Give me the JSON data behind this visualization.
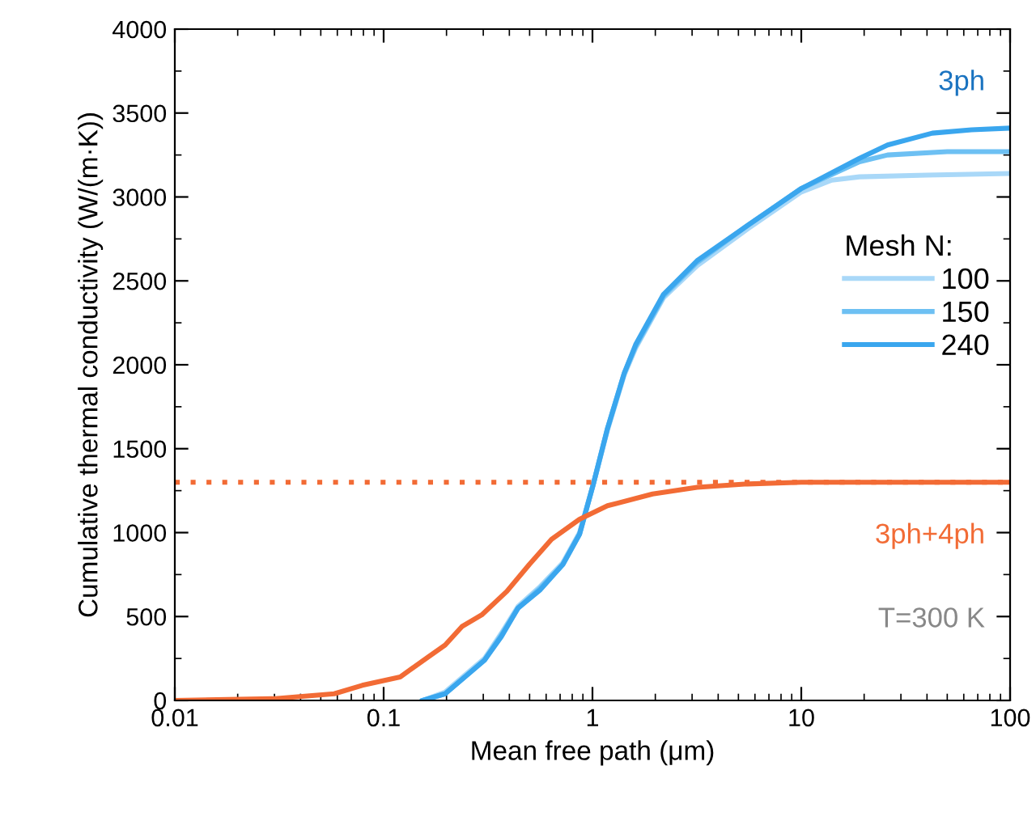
{
  "chart_data": {
    "type": "line",
    "xlabel": "Mean free path (μm)",
    "ylabel": "Cumulative thermal conductivity (W/(m·K))",
    "legend_title": "Mesh N:",
    "log": "x",
    "xlim": [
      0.01,
      100
    ],
    "xticks": [
      0.01,
      0.1,
      1,
      10,
      100
    ],
    "ylim": [
      0,
      4000
    ],
    "yticks": [
      0,
      500,
      1000,
      1500,
      2000,
      2500,
      3000,
      3500,
      4000
    ],
    "grid": false,
    "legend": "right",
    "marker": "none",
    "line_style": "solid",
    "series": [
      {
        "name": "100",
        "color": "#a9d8f8",
        "x": [
          0.154,
          0.197,
          0.304,
          0.366,
          0.44,
          0.563,
          0.721,
          0.867,
          1.01,
          1.18,
          1.42,
          1.61,
          2.19,
          3.17,
          5.53,
          10,
          14,
          19,
          40,
          100
        ],
        "values": [
          0,
          50,
          250,
          400,
          560,
          680,
          820,
          1000,
          1290,
          1610,
          1940,
          2100,
          2400,
          2590,
          2810,
          3030,
          3100,
          3120,
          3130,
          3140
        ]
      },
      {
        "name": "150",
        "color": "#6dc0f3",
        "x": [
          0.154,
          0.197,
          0.304,
          0.366,
          0.44,
          0.563,
          0.721,
          0.867,
          1.01,
          1.18,
          1.42,
          1.61,
          2.19,
          3.17,
          5.53,
          10,
          19,
          25.9,
          50,
          100
        ],
        "values": [
          0,
          40,
          240,
          390,
          550,
          670,
          810,
          990,
          1290,
          1620,
          1950,
          2110,
          2410,
          2610,
          2830,
          3050,
          3210,
          3250,
          3270,
          3270
        ]
      },
      {
        "name": "240",
        "color": "#3aa6ee",
        "x": [
          0.154,
          0.197,
          0.304,
          0.366,
          0.44,
          0.563,
          0.721,
          0.867,
          1.01,
          1.18,
          1.42,
          1.61,
          2.19,
          3.17,
          5.53,
          10,
          19,
          25.9,
          42.4,
          65.3,
          100
        ],
        "values": [
          0,
          40,
          240,
          380,
          550,
          660,
          810,
          990,
          1290,
          1620,
          1950,
          2120,
          2420,
          2620,
          2830,
          3050,
          3230,
          3310,
          3380,
          3400,
          3410
        ]
      },
      {
        "color": "#f26b35",
        "x": [
          0.01,
          0.0295,
          0.058,
          0.079,
          0.12,
          0.164,
          0.197,
          0.237,
          0.295,
          0.389,
          0.498,
          0.637,
          0.867,
          1.18,
          1.94,
          3.17,
          5.53,
          10,
          100
        ],
        "values": [
          0,
          10,
          40,
          90,
          140,
          260,
          330,
          440,
          510,
          650,
          810,
          960,
          1080,
          1160,
          1230,
          1270,
          1290,
          1300,
          1300
        ]
      }
    ],
    "ref_lines": [
      {
        "axis": "y",
        "value": 1300,
        "color": "#f26b35",
        "line_style": "dotted"
      }
    ],
    "annotations": [
      "3ph",
      "3ph+4ph",
      "T=300 K"
    ]
  }
}
